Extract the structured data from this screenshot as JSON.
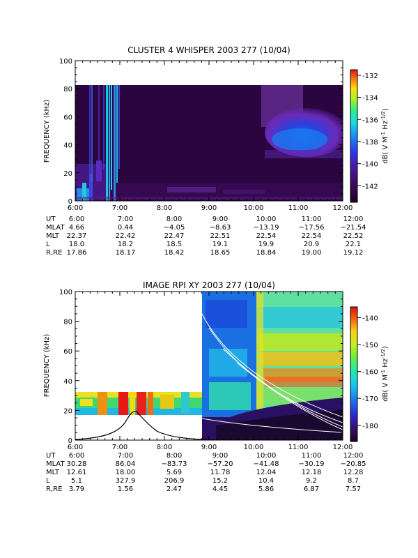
{
  "chart_data": [
    {
      "type": "heatmap",
      "title": "CLUSTER 4 WHISPER 2003 277 (10/04)",
      "ylabel": "FREQUENCY (kHz)",
      "ylim": [
        0,
        100
      ],
      "y_ticks": [
        "0",
        "20",
        "40",
        "60",
        "80",
        "100"
      ],
      "x_ticks": [
        "6:00",
        "7:00",
        "8:00",
        "9:00",
        "10:00",
        "11:00",
        "12:00"
      ],
      "colorbar": {
        "label": "dB( V M⁻¹ Hz⁻¹ᐟ²)",
        "label_parts": {
          "main": "dB( V M",
          "exp1": "-1",
          "mid": " Hz",
          "exp2": "-1/2",
          "close": ")"
        },
        "range": [
          -143.5,
          -131.5
        ],
        "ticks": [
          "-132",
          "-134",
          "-136",
          "-138",
          "-140",
          "-142"
        ]
      },
      "ephemeris": [
        {
          "label": "UT",
          "values": [
            "6:00",
            "7:00",
            "8:00",
            "9:00",
            "10:00",
            "11:00",
            "12:00"
          ]
        },
        {
          "label": "MLAT",
          "values": [
            "4.66",
            "0.44",
            "−4.05",
            "−8.63",
            "−13.19",
            "−17.56",
            "−21.54"
          ]
        },
        {
          "label": "MLT",
          "values": [
            "22.37",
            "22.42",
            "22.47",
            "22.51",
            "22.54",
            "22.54",
            "22.52"
          ]
        },
        {
          "label": "L",
          "values": [
            "18.0",
            "18.2",
            "18.5",
            "19.1",
            "19.9",
            "20.9",
            "22.1"
          ]
        },
        {
          "label": "R,RE",
          "values": [
            "17.86",
            "18.17",
            "18.42",
            "18.65",
            "18.84",
            "19.00",
            "19.12"
          ]
        }
      ]
    },
    {
      "type": "heatmap",
      "title": "IMAGE RPI XY 2003 277 (10/04)",
      "ylabel": "FREQUENCY (kHz)",
      "ylim": [
        0,
        100
      ],
      "y_ticks": [
        "0",
        "20",
        "40",
        "60",
        "80",
        "100"
      ],
      "x_ticks": [
        "6:00",
        "7:00",
        "8:00",
        "9:00",
        "10:00",
        "11:00",
        "12:00"
      ],
      "colorbar": {
        "label_parts": {
          "main": "dB( V M",
          "exp1": "-1",
          "mid": " Hz",
          "exp2": "-1/2",
          "close": ")"
        },
        "range": [
          -186,
          -136
        ],
        "ticks": [
          "-140",
          "-150",
          "-160",
          "-170",
          "-180"
        ]
      },
      "ephemeris": [
        {
          "label": "UT",
          "values": [
            "6:00",
            "7:00",
            "8:00",
            "9:00",
            "10:00",
            "11:00",
            "12:00"
          ]
        },
        {
          "label": "MLAT",
          "values": [
            "30.28",
            "86.04",
            "−83.73",
            "−57.20",
            "−41.48",
            "−30.19",
            "−20.85"
          ]
        },
        {
          "label": "MLT",
          "values": [
            "12.61",
            "18.00",
            "5.69",
            "11.78",
            "12.04",
            "12.18",
            "12.28"
          ]
        },
        {
          "label": "L",
          "values": [
            "5.1",
            "327.9",
            "206.9",
            "15.2",
            "10.4",
            "9.2",
            "8.7"
          ]
        },
        {
          "label": "R,RE",
          "values": [
            "3.79",
            "1.56",
            "2.47",
            "4.45",
            "5.86",
            "6.87",
            "7.57"
          ]
        }
      ]
    }
  ]
}
